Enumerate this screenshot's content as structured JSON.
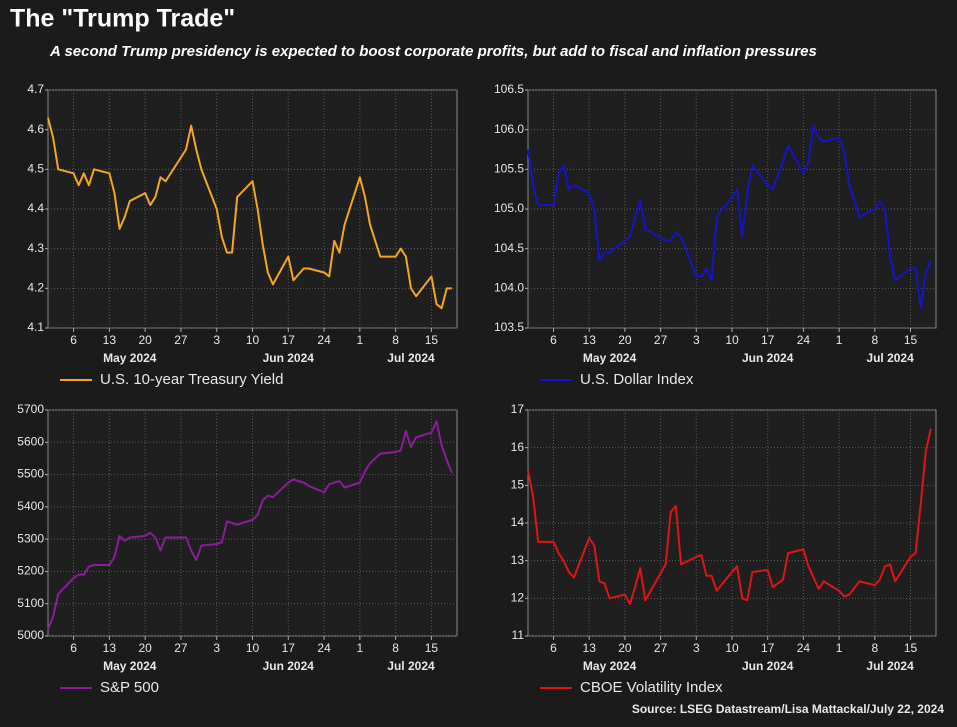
{
  "title": "The \"Trump Trade\"",
  "subtitle": "A second Trump presidency is expected to boost corporate profits, but add to fiscal and inflation pressures",
  "source": "Source: LSEG Datastream/Lisa Mattackal/July 22, 2024",
  "chart_data": [
    {
      "type": "line",
      "x": [
        "2024-05-01",
        "2024-05-02",
        "2024-05-03",
        "2024-05-06",
        "2024-05-07",
        "2024-05-08",
        "2024-05-09",
        "2024-05-10",
        "2024-05-13",
        "2024-05-14",
        "2024-05-15",
        "2024-05-16",
        "2024-05-17",
        "2024-05-20",
        "2024-05-21",
        "2024-05-22",
        "2024-05-23",
        "2024-05-24",
        "2024-05-28",
        "2024-05-29",
        "2024-05-30",
        "2024-05-31",
        "2024-06-03",
        "2024-06-04",
        "2024-06-05",
        "2024-06-06",
        "2024-06-07",
        "2024-06-10",
        "2024-06-11",
        "2024-06-12",
        "2024-06-13",
        "2024-06-14",
        "2024-06-17",
        "2024-06-18",
        "2024-06-20",
        "2024-06-21",
        "2024-06-24",
        "2024-06-25",
        "2024-06-26",
        "2024-06-27",
        "2024-06-28",
        "2024-07-01",
        "2024-07-02",
        "2024-07-03",
        "2024-07-05",
        "2024-07-08",
        "2024-07-09",
        "2024-07-10",
        "2024-07-11",
        "2024-07-12",
        "2024-07-15",
        "2024-07-16",
        "2024-07-17",
        "2024-07-18",
        "2024-07-19"
      ],
      "series": [
        {
          "name": "U.S. 10-year Treasury Yield",
          "color": "#f5a623",
          "values": [
            4.63,
            4.58,
            4.5,
            4.49,
            4.46,
            4.49,
            4.46,
            4.5,
            4.49,
            4.44,
            4.35,
            4.38,
            4.42,
            4.44,
            4.41,
            4.43,
            4.48,
            4.47,
            4.55,
            4.61,
            4.55,
            4.5,
            4.4,
            4.33,
            4.29,
            4.29,
            4.43,
            4.47,
            4.4,
            4.31,
            4.24,
            4.21,
            4.28,
            4.22,
            4.25,
            4.25,
            4.24,
            4.23,
            4.32,
            4.29,
            4.36,
            4.48,
            4.43,
            4.36,
            4.28,
            4.28,
            4.3,
            4.28,
            4.2,
            4.18,
            4.23,
            4.16,
            4.15,
            4.2,
            4.2
          ]
        }
      ],
      "xlim": [
        "2024-05-01",
        "2024-07-20"
      ],
      "xticks": [
        {
          "value": "2024-05-06",
          "label": "6"
        },
        {
          "value": "2024-05-13",
          "label": "13"
        },
        {
          "value": "2024-05-20",
          "label": "20"
        },
        {
          "value": "2024-05-27",
          "label": "27"
        },
        {
          "value": "2024-06-03",
          "label": "3"
        },
        {
          "value": "2024-06-10",
          "label": "10"
        },
        {
          "value": "2024-06-17",
          "label": "17"
        },
        {
          "value": "2024-06-24",
          "label": "24"
        },
        {
          "value": "2024-07-01",
          "label": "1"
        },
        {
          "value": "2024-07-08",
          "label": "8"
        },
        {
          "value": "2024-07-15",
          "label": "15"
        }
      ],
      "xgroups": [
        {
          "value": "2024-05-17",
          "label": "May 2024"
        },
        {
          "value": "2024-06-17",
          "label": "Jun 2024"
        },
        {
          "value": "2024-07-11",
          "label": "Jul 2024"
        }
      ],
      "ylim": [
        4.1,
        4.7
      ],
      "yticks": [
        4.1,
        4.2,
        4.3,
        4.4,
        4.5,
        4.6,
        4.7
      ],
      "grid": true
    },
    {
      "type": "line",
      "x": [
        "2024-05-01",
        "2024-05-02",
        "2024-05-03",
        "2024-05-06",
        "2024-05-07",
        "2024-05-08",
        "2024-05-09",
        "2024-05-10",
        "2024-05-13",
        "2024-05-14",
        "2024-05-15",
        "2024-05-16",
        "2024-05-17",
        "2024-05-20",
        "2024-05-21",
        "2024-05-22",
        "2024-05-23",
        "2024-05-24",
        "2024-05-28",
        "2024-05-29",
        "2024-05-30",
        "2024-05-31",
        "2024-06-03",
        "2024-06-04",
        "2024-06-05",
        "2024-06-06",
        "2024-06-07",
        "2024-06-10",
        "2024-06-11",
        "2024-06-12",
        "2024-06-13",
        "2024-06-14",
        "2024-06-17",
        "2024-06-18",
        "2024-06-20",
        "2024-06-21",
        "2024-06-24",
        "2024-06-25",
        "2024-06-26",
        "2024-06-27",
        "2024-06-28",
        "2024-07-01",
        "2024-07-02",
        "2024-07-03",
        "2024-07-05",
        "2024-07-08",
        "2024-07-09",
        "2024-07-10",
        "2024-07-11",
        "2024-07-12",
        "2024-07-15",
        "2024-07-16",
        "2024-07-17",
        "2024-07-18",
        "2024-07-19"
      ],
      "series": [
        {
          "name": "U.S. Dollar Index",
          "color": "#1414c8",
          "values": [
            105.75,
            105.3,
            105.05,
            105.05,
            105.45,
            105.55,
            105.25,
            105.3,
            105.2,
            105.0,
            104.35,
            104.45,
            104.45,
            104.6,
            104.65,
            104.9,
            105.1,
            104.75,
            104.6,
            104.6,
            104.7,
            104.65,
            104.15,
            104.15,
            104.25,
            104.1,
            104.9,
            105.15,
            105.25,
            104.65,
            105.2,
            105.55,
            105.3,
            105.25,
            105.6,
            105.8,
            105.45,
            105.6,
            106.05,
            105.9,
            105.85,
            105.9,
            105.7,
            105.3,
            104.9,
            105.0,
            105.1,
            105.0,
            104.4,
            104.1,
            104.25,
            104.25,
            103.75,
            104.2,
            104.35
          ]
        }
      ],
      "xlim": [
        "2024-05-01",
        "2024-07-20"
      ],
      "xticks": [
        {
          "value": "2024-05-06",
          "label": "6"
        },
        {
          "value": "2024-05-13",
          "label": "13"
        },
        {
          "value": "2024-05-20",
          "label": "20"
        },
        {
          "value": "2024-05-27",
          "label": "27"
        },
        {
          "value": "2024-06-03",
          "label": "3"
        },
        {
          "value": "2024-06-10",
          "label": "10"
        },
        {
          "value": "2024-06-17",
          "label": "17"
        },
        {
          "value": "2024-06-24",
          "label": "24"
        },
        {
          "value": "2024-07-01",
          "label": "1"
        },
        {
          "value": "2024-07-08",
          "label": "8"
        },
        {
          "value": "2024-07-15",
          "label": "15"
        }
      ],
      "xgroups": [
        {
          "value": "2024-05-17",
          "label": "May 2024"
        },
        {
          "value": "2024-06-17",
          "label": "Jun 2024"
        },
        {
          "value": "2024-07-11",
          "label": "Jul 2024"
        }
      ],
      "ylim": [
        103.5,
        106.5
      ],
      "yticks": [
        103.5,
        {
          "value": 104,
          "label": "104.0"
        },
        104.5,
        {
          "value": 105,
          "label": "105.0"
        },
        105.5,
        {
          "value": 106,
          "label": "106.0"
        },
        106.5
      ],
      "grid": true
    },
    {
      "type": "line",
      "x": [
        "2024-05-01",
        "2024-05-02",
        "2024-05-03",
        "2024-05-06",
        "2024-05-07",
        "2024-05-08",
        "2024-05-09",
        "2024-05-10",
        "2024-05-13",
        "2024-05-14",
        "2024-05-15",
        "2024-05-16",
        "2024-05-17",
        "2024-05-20",
        "2024-05-21",
        "2024-05-22",
        "2024-05-23",
        "2024-05-24",
        "2024-05-28",
        "2024-05-29",
        "2024-05-30",
        "2024-05-31",
        "2024-06-03",
        "2024-06-04",
        "2024-06-05",
        "2024-06-06",
        "2024-06-07",
        "2024-06-10",
        "2024-06-11",
        "2024-06-12",
        "2024-06-13",
        "2024-06-14",
        "2024-06-17",
        "2024-06-18",
        "2024-06-20",
        "2024-06-21",
        "2024-06-24",
        "2024-06-25",
        "2024-06-26",
        "2024-06-27",
        "2024-06-28",
        "2024-07-01",
        "2024-07-02",
        "2024-07-03",
        "2024-07-05",
        "2024-07-08",
        "2024-07-09",
        "2024-07-10",
        "2024-07-11",
        "2024-07-12",
        "2024-07-15",
        "2024-07-16",
        "2024-07-17",
        "2024-07-18",
        "2024-07-19"
      ],
      "series": [
        {
          "name": "S&P 500",
          "color": "#8e1a9e",
          "values": [
            5020,
            5060,
            5130,
            5180,
            5190,
            5190,
            5215,
            5220,
            5220,
            5245,
            5310,
            5295,
            5305,
            5310,
            5320,
            5305,
            5265,
            5305,
            5305,
            5265,
            5235,
            5280,
            5285,
            5290,
            5355,
            5350,
            5345,
            5360,
            5375,
            5420,
            5435,
            5430,
            5475,
            5485,
            5475,
            5465,
            5445,
            5470,
            5475,
            5480,
            5460,
            5475,
            5510,
            5535,
            5565,
            5570,
            5575,
            5635,
            5585,
            5615,
            5630,
            5665,
            5590,
            5545,
            5505
          ]
        }
      ],
      "xlim": [
        "2024-05-01",
        "2024-07-20"
      ],
      "xticks": [
        {
          "value": "2024-05-06",
          "label": "6"
        },
        {
          "value": "2024-05-13",
          "label": "13"
        },
        {
          "value": "2024-05-20",
          "label": "20"
        },
        {
          "value": "2024-05-27",
          "label": "27"
        },
        {
          "value": "2024-06-03",
          "label": "3"
        },
        {
          "value": "2024-06-10",
          "label": "10"
        },
        {
          "value": "2024-06-17",
          "label": "17"
        },
        {
          "value": "2024-06-24",
          "label": "24"
        },
        {
          "value": "2024-07-01",
          "label": "1"
        },
        {
          "value": "2024-07-08",
          "label": "8"
        },
        {
          "value": "2024-07-15",
          "label": "15"
        }
      ],
      "xgroups": [
        {
          "value": "2024-05-17",
          "label": "May 2024"
        },
        {
          "value": "2024-06-17",
          "label": "Jun 2024"
        },
        {
          "value": "2024-07-11",
          "label": "Jul 2024"
        }
      ],
      "ylim": [
        5000,
        5700
      ],
      "yticks": [
        5000,
        5100,
        5200,
        5300,
        5400,
        5500,
        5600,
        5700
      ],
      "grid": true
    },
    {
      "type": "line",
      "x": [
        "2024-05-01",
        "2024-05-02",
        "2024-05-03",
        "2024-05-06",
        "2024-05-07",
        "2024-05-08",
        "2024-05-09",
        "2024-05-10",
        "2024-05-13",
        "2024-05-14",
        "2024-05-15",
        "2024-05-16",
        "2024-05-17",
        "2024-05-20",
        "2024-05-21",
        "2024-05-22",
        "2024-05-23",
        "2024-05-24",
        "2024-05-28",
        "2024-05-29",
        "2024-05-30",
        "2024-05-31",
        "2024-06-03",
        "2024-06-04",
        "2024-06-05",
        "2024-06-06",
        "2024-06-07",
        "2024-06-10",
        "2024-06-11",
        "2024-06-12",
        "2024-06-13",
        "2024-06-14",
        "2024-06-17",
        "2024-06-18",
        "2024-06-20",
        "2024-06-21",
        "2024-06-24",
        "2024-06-25",
        "2024-06-26",
        "2024-06-27",
        "2024-06-28",
        "2024-07-01",
        "2024-07-02",
        "2024-07-03",
        "2024-07-05",
        "2024-07-08",
        "2024-07-09",
        "2024-07-10",
        "2024-07-11",
        "2024-07-12",
        "2024-07-15",
        "2024-07-16",
        "2024-07-17",
        "2024-07-18",
        "2024-07-19"
      ],
      "series": [
        {
          "name": "CBOE Volatility Index",
          "color": "#e01414",
          "values": [
            15.4,
            14.7,
            13.5,
            13.5,
            13.2,
            13.0,
            12.7,
            12.55,
            13.6,
            13.4,
            12.45,
            12.4,
            12.0,
            12.1,
            11.85,
            12.3,
            12.8,
            11.95,
            12.9,
            14.3,
            14.45,
            12.9,
            13.1,
            13.15,
            12.6,
            12.6,
            12.2,
            12.7,
            12.85,
            12.0,
            11.95,
            12.7,
            12.75,
            12.3,
            12.5,
            13.2,
            13.3,
            12.85,
            12.55,
            12.25,
            12.45,
            12.2,
            12.05,
            12.1,
            12.45,
            12.35,
            12.5,
            12.85,
            12.9,
            12.45,
            13.1,
            13.2,
            14.5,
            15.9,
            16.5
          ]
        }
      ],
      "xlim": [
        "2024-05-01",
        "2024-07-20"
      ],
      "xticks": [
        {
          "value": "2024-05-06",
          "label": "6"
        },
        {
          "value": "2024-05-13",
          "label": "13"
        },
        {
          "value": "2024-05-20",
          "label": "20"
        },
        {
          "value": "2024-05-27",
          "label": "27"
        },
        {
          "value": "2024-06-03",
          "label": "3"
        },
        {
          "value": "2024-06-10",
          "label": "10"
        },
        {
          "value": "2024-06-17",
          "label": "17"
        },
        {
          "value": "2024-06-24",
          "label": "24"
        },
        {
          "value": "2024-07-01",
          "label": "1"
        },
        {
          "value": "2024-07-08",
          "label": "8"
        },
        {
          "value": "2024-07-15",
          "label": "15"
        }
      ],
      "xgroups": [
        {
          "value": "2024-05-17",
          "label": "May 2024"
        },
        {
          "value": "2024-06-17",
          "label": "Jun 2024"
        },
        {
          "value": "2024-07-11",
          "label": "Jul 2024"
        }
      ],
      "ylim": [
        11,
        17
      ],
      "yticks": [
        11,
        12,
        13,
        14,
        15,
        16,
        17
      ],
      "grid": true
    }
  ]
}
